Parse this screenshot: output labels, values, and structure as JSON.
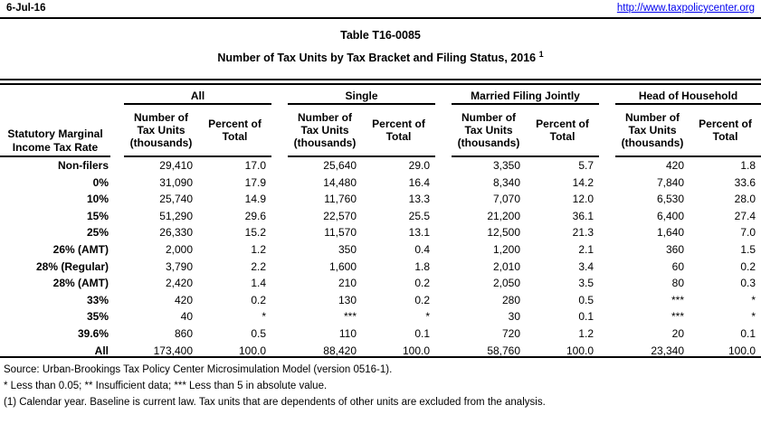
{
  "header": {
    "date": "6-Jul-16",
    "url": "http://www.taxpolicycenter.org"
  },
  "title": {
    "line1": "Table T16-0085",
    "line2": "Number of Tax Units by Tax Bracket and Filing Status, 2016",
    "superscript": "1"
  },
  "table": {
    "row_header": "Statutory Marginal\nIncome Tax Rate",
    "groups": [
      "All",
      "Single",
      "Married Filing Jointly",
      "Head of Household"
    ],
    "subheaders": {
      "number": "Number of\nTax Units\n(thousands)",
      "percent": "Percent of\nTotal"
    },
    "rows": [
      {
        "label": "Non-filers",
        "values": [
          "29,410",
          "17.0",
          "25,640",
          "29.0",
          "3,350",
          "5.7",
          "420",
          "1.8"
        ]
      },
      {
        "label": "0%",
        "values": [
          "31,090",
          "17.9",
          "14,480",
          "16.4",
          "8,340",
          "14.2",
          "7,840",
          "33.6"
        ]
      },
      {
        "label": "10%",
        "values": [
          "25,740",
          "14.9",
          "11,760",
          "13.3",
          "7,070",
          "12.0",
          "6,530",
          "28.0"
        ]
      },
      {
        "label": "15%",
        "values": [
          "51,290",
          "29.6",
          "22,570",
          "25.5",
          "21,200",
          "36.1",
          "6,400",
          "27.4"
        ]
      },
      {
        "label": "25%",
        "values": [
          "26,330",
          "15.2",
          "11,570",
          "13.1",
          "12,500",
          "21.3",
          "1,640",
          "7.0"
        ]
      },
      {
        "label": "26% (AMT)",
        "values": [
          "2,000",
          "1.2",
          "350",
          "0.4",
          "1,200",
          "2.1",
          "360",
          "1.5"
        ]
      },
      {
        "label": "28% (Regular)",
        "values": [
          "3,790",
          "2.2",
          "1,600",
          "1.8",
          "2,010",
          "3.4",
          "60",
          "0.2"
        ]
      },
      {
        "label": "28% (AMT)",
        "values": [
          "2,420",
          "1.4",
          "210",
          "0.2",
          "2,050",
          "3.5",
          "80",
          "0.3"
        ]
      },
      {
        "label": "33%",
        "values": [
          "420",
          "0.2",
          "130",
          "0.2",
          "280",
          "0.5",
          "***",
          "*"
        ]
      },
      {
        "label": "35%",
        "values": [
          "40",
          "*",
          "***",
          "*",
          "30",
          "0.1",
          "***",
          "*"
        ]
      },
      {
        "label": "39.6%",
        "values": [
          "860",
          "0.5",
          "110",
          "0.1",
          "720",
          "1.2",
          "20",
          "0.1"
        ]
      },
      {
        "label": "All",
        "values": [
          "173,400",
          "100.0",
          "88,420",
          "100.0",
          "58,760",
          "100.0",
          "23,340",
          "100.0"
        ]
      }
    ]
  },
  "footnotes": [
    "Source: Urban-Brookings Tax Policy Center Microsimulation Model (version 0516-1).",
    "* Less than 0.05; ** Insufficient data; *** Less than 5 in absolute value.",
    "(1) Calendar year. Baseline is current law. Tax units that are dependents of other units are excluded from the analysis."
  ],
  "colors": {
    "link": "#0000EE",
    "text": "#000000",
    "background": "#FFFFFF"
  }
}
